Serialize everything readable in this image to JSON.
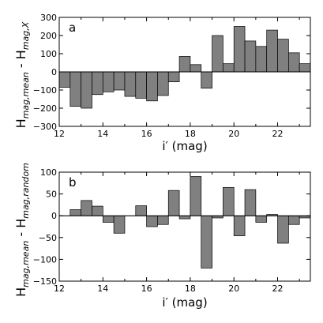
{
  "chart_data": [
    {
      "type": "bar",
      "panel_label": "a",
      "xlabel": "i′ (mag)",
      "ylabel": {
        "main": "H",
        "sub1": "mag,mean",
        "sep": " - H",
        "sub2": "mag,X"
      },
      "xlim": [
        12,
        23.5
      ],
      "ylim": [
        -300,
        300
      ],
      "xticks": [
        12,
        14,
        16,
        18,
        20,
        22
      ],
      "yticks": [
        300,
        200,
        100,
        0,
        -100,
        -200,
        -300
      ],
      "bin_width": 0.5,
      "bar_color": "#808080",
      "x": [
        12.0,
        12.5,
        13.0,
        13.5,
        14.0,
        14.5,
        15.0,
        15.5,
        16.0,
        16.5,
        17.0,
        17.5,
        18.0,
        18.5,
        19.0,
        19.5,
        20.0,
        20.5,
        21.0,
        21.5,
        22.0,
        22.5,
        23.0
      ],
      "values": [
        -85,
        -190,
        -200,
        -125,
        -110,
        -100,
        -135,
        -145,
        -160,
        -130,
        -55,
        85,
        40,
        -90,
        200,
        45,
        250,
        170,
        140,
        230,
        180,
        105,
        45
      ]
    },
    {
      "type": "bar",
      "panel_label": "b",
      "xlabel": "i′ (mag)",
      "ylabel": {
        "main": "H",
        "sub1": "mag,mean",
        "sep": " - H",
        "sub2": "mag,random"
      },
      "xlim": [
        12,
        23.5
      ],
      "ylim": [
        -150,
        100
      ],
      "xticks": [
        12,
        14,
        16,
        18,
        20,
        22
      ],
      "yticks": [
        100,
        50,
        0,
        -50,
        -100,
        -150
      ],
      "bin_width": 0.5,
      "bar_color": "#808080",
      "x": [
        12.0,
        12.5,
        13.0,
        13.5,
        14.0,
        14.5,
        15.0,
        15.5,
        16.0,
        16.5,
        17.0,
        17.5,
        18.0,
        18.5,
        19.0,
        19.5,
        20.0,
        20.5,
        21.0,
        21.5,
        22.0,
        22.5,
        23.0
      ],
      "values": [
        0,
        14,
        35,
        22,
        -15,
        -40,
        0,
        23,
        -25,
        -20,
        58,
        -7,
        90,
        -120,
        -5,
        65,
        -46,
        60,
        -15,
        3,
        -63,
        -20,
        -5
      ]
    }
  ]
}
